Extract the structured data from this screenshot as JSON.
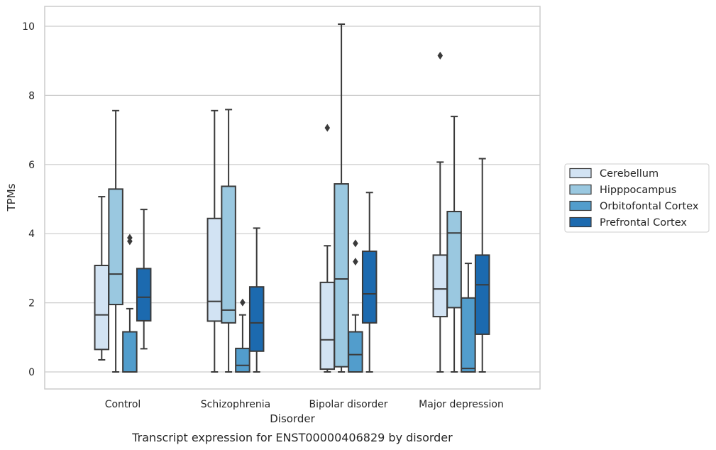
{
  "chart_data": {
    "type": "box",
    "caption": "Transcript expression for ENST00000406829 by disorder",
    "xlabel": "Disorder",
    "ylabel": "TPMs",
    "ylim": [
      -0.45,
      10.55
    ],
    "yticks": [
      0,
      2,
      4,
      6,
      8,
      10
    ],
    "grid": "horizontal",
    "legend_position": "right",
    "categories": [
      "Control",
      "Schizophrenia",
      "Bipolar disorder",
      "Major depression"
    ],
    "series": [
      {
        "name": "Cerebellum",
        "color": "#d2e3f3",
        "boxes": [
          {
            "whisker_low": 0.35,
            "q1": 0.65,
            "median": 1.65,
            "q3": 3.08,
            "whisker_high": 5.07,
            "outliers": []
          },
          {
            "whisker_low": 0.0,
            "q1": 1.47,
            "median": 2.04,
            "q3": 4.44,
            "whisker_high": 7.56,
            "outliers": []
          },
          {
            "whisker_low": 0.0,
            "q1": 0.08,
            "median": 0.93,
            "q3": 2.59,
            "whisker_high": 3.65,
            "outliers": [
              7.06
            ]
          },
          {
            "whisker_low": 0.0,
            "q1": 1.6,
            "median": 2.4,
            "q3": 3.38,
            "whisker_high": 6.07,
            "outliers": [
              9.15
            ]
          }
        ]
      },
      {
        "name": "Hipppocampus",
        "color": "#9ac8e0",
        "boxes": [
          {
            "whisker_low": 0.0,
            "q1": 1.95,
            "median": 2.83,
            "q3": 5.29,
            "whisker_high": 7.56,
            "outliers": []
          },
          {
            "whisker_low": 0.0,
            "q1": 1.42,
            "median": 1.79,
            "q3": 5.37,
            "whisker_high": 7.59,
            "outliers": []
          },
          {
            "whisker_low": 0.0,
            "q1": 0.15,
            "median": 2.69,
            "q3": 5.44,
            "whisker_high": 10.06,
            "outliers": []
          },
          {
            "whisker_low": 0.0,
            "q1": 1.86,
            "median": 4.02,
            "q3": 4.64,
            "whisker_high": 7.39,
            "outliers": []
          }
        ]
      },
      {
        "name": "Orbitofontal Cortex",
        "color": "#529dcc",
        "boxes": [
          {
            "whisker_low": 0.0,
            "q1": 0.0,
            "median": 0.0,
            "q3": 1.16,
            "whisker_high": 1.83,
            "outliers": [
              3.78,
              3.88
            ]
          },
          {
            "whisker_low": 0.0,
            "q1": 0.0,
            "median": 0.19,
            "q3": 0.68,
            "whisker_high": 1.65,
            "outliers": [
              2.01
            ]
          },
          {
            "whisker_low": 0.0,
            "q1": 0.0,
            "median": 0.5,
            "q3": 1.16,
            "whisker_high": 1.65,
            "outliers": [
              3.19,
              3.72
            ]
          },
          {
            "whisker_low": 0.0,
            "q1": 0.0,
            "median": 0.1,
            "q3": 2.14,
            "whisker_high": 3.14,
            "outliers": []
          }
        ]
      },
      {
        "name": "Prefrontal Cortex",
        "color": "#1c6aaf",
        "boxes": [
          {
            "whisker_low": 0.67,
            "q1": 1.48,
            "median": 2.16,
            "q3": 2.99,
            "whisker_high": 4.7,
            "outliers": []
          },
          {
            "whisker_low": 0.0,
            "q1": 0.6,
            "median": 1.42,
            "q3": 2.46,
            "whisker_high": 4.16,
            "outliers": []
          },
          {
            "whisker_low": 0.0,
            "q1": 1.42,
            "median": 2.26,
            "q3": 3.49,
            "whisker_high": 5.19,
            "outliers": []
          },
          {
            "whisker_low": 0.0,
            "q1": 1.09,
            "median": 2.52,
            "q3": 3.38,
            "whisker_high": 6.17,
            "outliers": []
          }
        ]
      }
    ]
  }
}
